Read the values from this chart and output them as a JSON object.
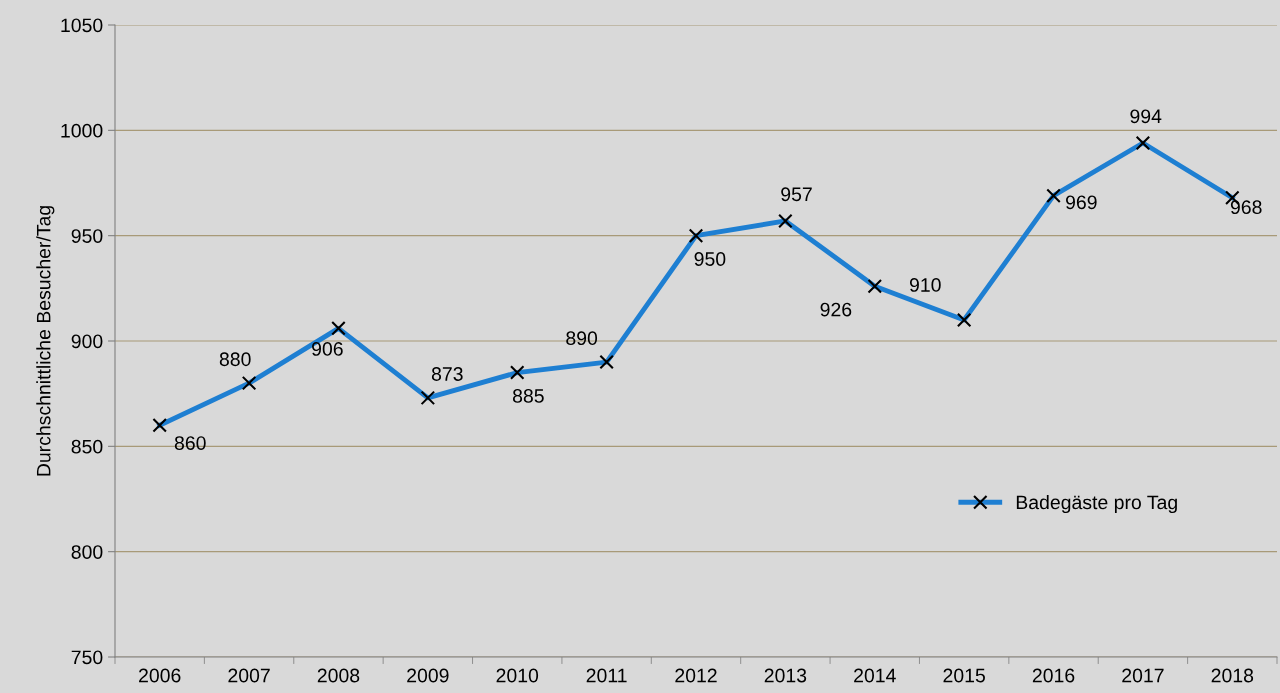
{
  "chart_data": {
    "type": "line",
    "ylabel": "Durchschnittliche Besucher/Tag",
    "categories": [
      "2006",
      "2007",
      "2008",
      "2009",
      "2010",
      "2011",
      "2012",
      "2013",
      "2014",
      "2015",
      "2016",
      "2017",
      "2018"
    ],
    "series": [
      {
        "name": "Badegäste pro Tag",
        "color": "#1e7fd2",
        "values": [
          860,
          880,
          906,
          873,
          885,
          890,
          950,
          957,
          926,
          910,
          969,
          994,
          968
        ]
      }
    ],
    "ylim": [
      750,
      1050
    ],
    "yticks": [
      750,
      800,
      850,
      900,
      950,
      1000,
      1050
    ],
    "grid": "y",
    "legend": "right",
    "marker": "cross",
    "line_style": "solid",
    "data_labels": true
  }
}
